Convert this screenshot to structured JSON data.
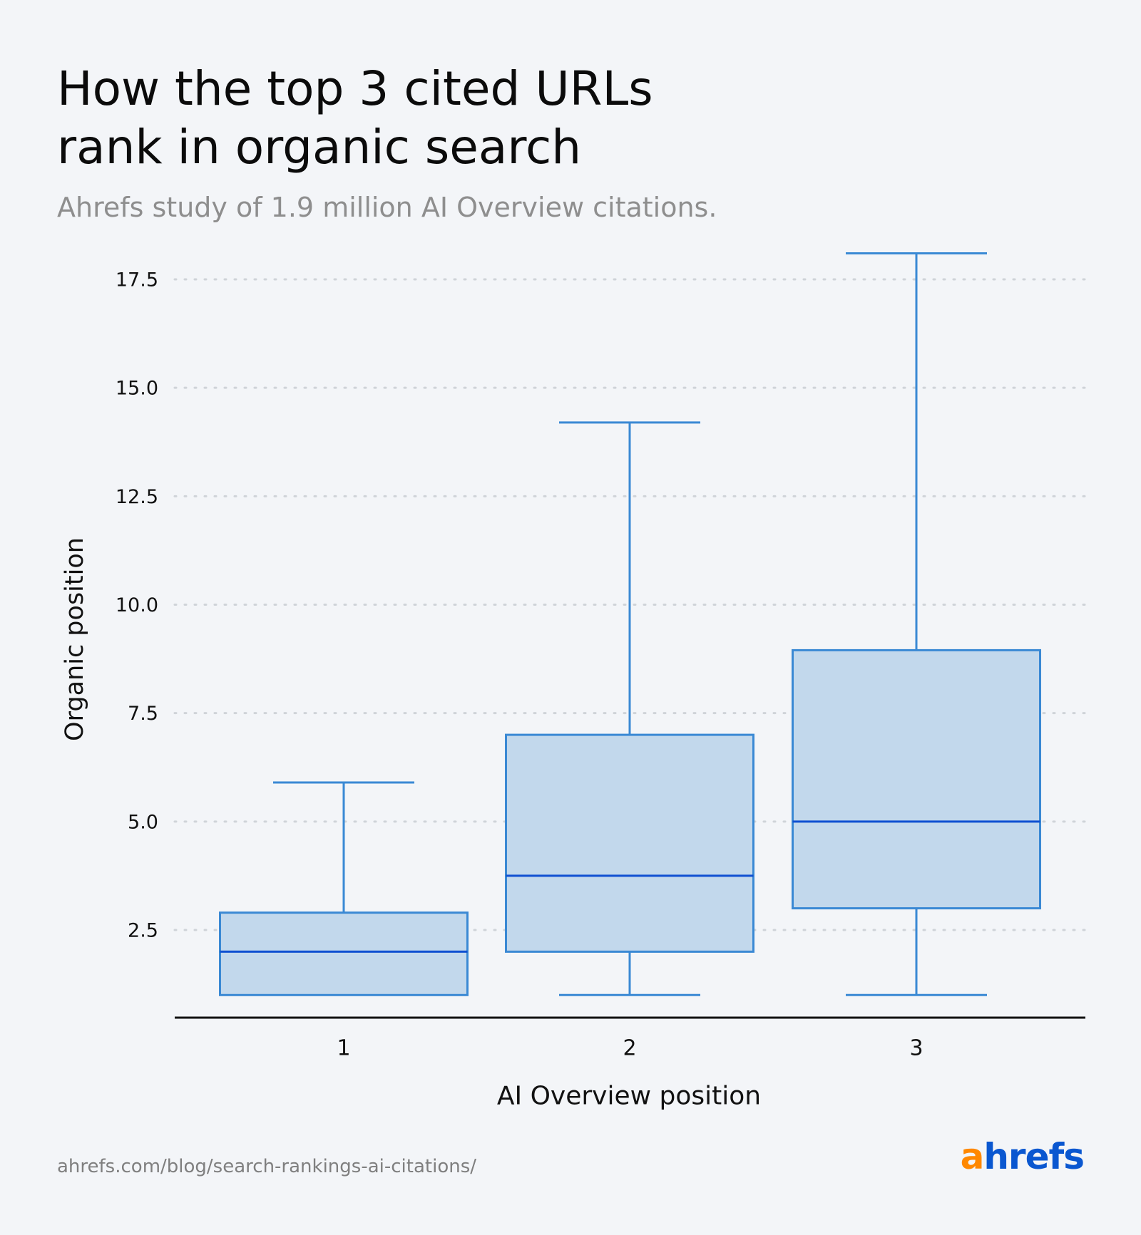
{
  "header": {
    "title_line1": "How the top 3 cited URLs",
    "title_line2": "rank in organic search",
    "subtitle": "Ahrefs study of 1.9 million AI Overview citations."
  },
  "footer": {
    "url": "ahrefs.com/blog/search-rankings-ai-citations/",
    "logo_first": "a",
    "logo_rest": "hrefs"
  },
  "colors": {
    "background": "#f3f5f8",
    "box_fill": "#c2d8ec",
    "box_stroke": "#3a89d4",
    "median": "#0e4fd1",
    "grid": "#cfd3d8",
    "axis": "#111111",
    "logo_a": "#ff8800",
    "logo_rest": "#0a57d0"
  },
  "chart_data": {
    "type": "box",
    "xlabel": "AI Overview position",
    "ylabel": "Organic position",
    "categories": [
      "1",
      "2",
      "3"
    ],
    "ylim": [
      0.4,
      18.5
    ],
    "yticks": [
      2.5,
      5.0,
      7.5,
      10.0,
      12.5,
      15.0,
      17.5
    ],
    "ytick_labels": [
      "2.5",
      "5.0",
      "7.5",
      "10.0",
      "12.5",
      "15.0",
      "17.5"
    ],
    "grid": "horizontal dotted",
    "boxes": [
      {
        "category": "1",
        "whisker_low": 1.0,
        "q1": 1.0,
        "median": 2.0,
        "q3": 2.9,
        "whisker_high": 5.9
      },
      {
        "category": "2",
        "whisker_low": 1.0,
        "q1": 2.0,
        "median": 3.75,
        "q3": 7.0,
        "whisker_high": 14.2
      },
      {
        "category": "3",
        "whisker_low": 1.0,
        "q1": 3.0,
        "median": 5.0,
        "q3": 8.95,
        "whisker_high": 18.1
      }
    ]
  }
}
